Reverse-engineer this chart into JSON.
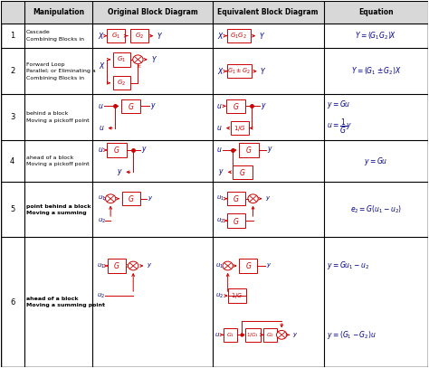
{
  "bg_color": "#ffffff",
  "red_color": "#cc0000",
  "blue_color": "#00008B",
  "black_color": "#000000",
  "header_bg": "#d8d8d8",
  "figsize": [
    4.74,
    4.07
  ],
  "dpi": 100,
  "col_bounds": [
    0.0,
    0.055,
    0.215,
    0.495,
    0.755,
    1.0
  ],
  "row_bounds": [
    1.0,
    0.938,
    0.87,
    0.745,
    0.62,
    0.505,
    0.355,
    0.0
  ],
  "headers": [
    "",
    "Manipulation",
    "Original Block Diagram",
    "Equivalent Block Diagram",
    "Equation"
  ],
  "row_labels": [
    "1",
    "2",
    "3",
    "4",
    "5",
    "6"
  ],
  "manip_texts": [
    [
      "Combining Blocks in",
      "Cascade"
    ],
    [
      "Combining Blocks in",
      "Parallel; or Eliminating a",
      "Forward Loop"
    ],
    [
      "Moving a pickoff point",
      "behind a block"
    ],
    [
      "Moving a pickoff point",
      "ahead of a block"
    ],
    [
      "Moving a summing",
      "point behind a block"
    ],
    [
      "Moving a summing point",
      "ahead of a block"
    ]
  ]
}
